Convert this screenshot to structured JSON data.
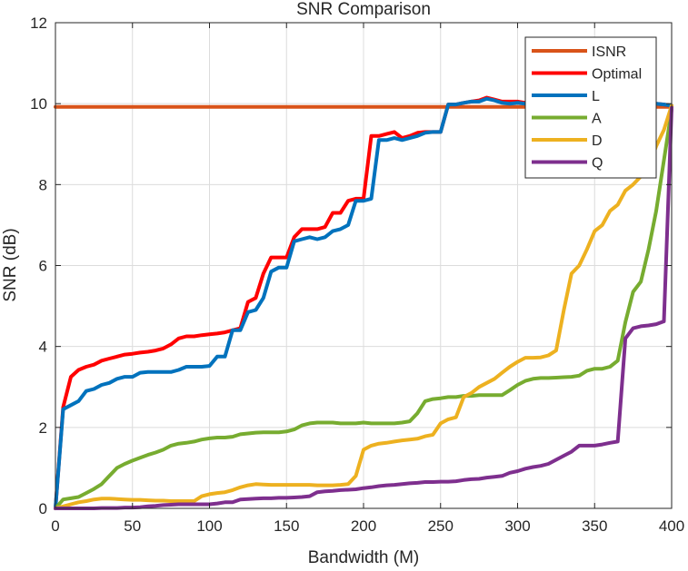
{
  "chart_data": {
    "type": "line",
    "title": "SNR Comparison",
    "xlabel": "Bandwidth (M)",
    "ylabel": "SNR (dB)",
    "xlim": [
      0,
      400
    ],
    "ylim": [
      0,
      12
    ],
    "xticks": [
      0,
      50,
      100,
      150,
      200,
      250,
      300,
      350,
      400
    ],
    "yticks": [
      0,
      2,
      4,
      6,
      8,
      10,
      12
    ],
    "grid": true,
    "legend_position": "top-right",
    "series": [
      {
        "name": "ISNR",
        "color": "#d95319",
        "x": [
          0,
          400
        ],
        "y": [
          9.92,
          9.92
        ]
      },
      {
        "name": "Optimal",
        "color": "#ff0000",
        "x": [
          0,
          5,
          10,
          15,
          20,
          25,
          30,
          35,
          40,
          45,
          50,
          55,
          60,
          65,
          70,
          75,
          80,
          85,
          90,
          95,
          100,
          105,
          110,
          115,
          120,
          125,
          130,
          135,
          140,
          145,
          150,
          155,
          160,
          165,
          170,
          175,
          180,
          185,
          190,
          195,
          200,
          205,
          210,
          215,
          220,
          225,
          230,
          235,
          240,
          245,
          250,
          255,
          260,
          265,
          270,
          275,
          280,
          285,
          290,
          295,
          300,
          305,
          310,
          315,
          320,
          325,
          330,
          335,
          340,
          345,
          350,
          355,
          360,
          365,
          370,
          375,
          380,
          385,
          390,
          395,
          400
        ],
        "y": [
          0,
          2.5,
          3.25,
          3.42,
          3.5,
          3.55,
          3.65,
          3.7,
          3.75,
          3.8,
          3.82,
          3.85,
          3.87,
          3.9,
          3.95,
          4.05,
          4.2,
          4.25,
          4.25,
          4.28,
          4.3,
          4.32,
          4.35,
          4.4,
          4.45,
          5.1,
          5.2,
          5.8,
          6.2,
          6.2,
          6.2,
          6.7,
          6.9,
          6.9,
          6.9,
          6.95,
          7.3,
          7.3,
          7.6,
          7.65,
          7.65,
          9.2,
          9.2,
          9.25,
          9.3,
          9.15,
          9.2,
          9.28,
          9.3,
          9.3,
          9.3,
          9.98,
          9.98,
          10.02,
          10.05,
          10.08,
          10.15,
          10.1,
          10.05,
          10.05,
          10.05,
          10.02,
          10.0,
          10.0,
          10.0,
          10.0,
          10.0,
          10.0,
          10.0,
          10.0,
          10.0,
          10.0,
          10.0,
          10.0,
          10.0,
          10.0,
          10.0,
          10.0,
          10.0,
          9.98,
          9.95
        ]
      },
      {
        "name": "L",
        "color": "#0072bd",
        "x": [
          0,
          5,
          10,
          15,
          20,
          25,
          30,
          35,
          40,
          45,
          50,
          55,
          60,
          65,
          70,
          75,
          80,
          85,
          90,
          95,
          100,
          105,
          110,
          115,
          120,
          125,
          130,
          135,
          140,
          145,
          150,
          155,
          160,
          165,
          170,
          175,
          180,
          185,
          190,
          195,
          200,
          205,
          210,
          215,
          220,
          225,
          230,
          235,
          240,
          245,
          250,
          255,
          260,
          265,
          270,
          275,
          280,
          285,
          290,
          295,
          300,
          305,
          310,
          315,
          320,
          325,
          330,
          335,
          340,
          345,
          350,
          355,
          360,
          365,
          370,
          375,
          380,
          385,
          390,
          395,
          400
        ],
        "y": [
          0,
          2.45,
          2.55,
          2.65,
          2.9,
          2.95,
          3.05,
          3.1,
          3.2,
          3.25,
          3.25,
          3.35,
          3.37,
          3.37,
          3.37,
          3.37,
          3.42,
          3.5,
          3.5,
          3.5,
          3.52,
          3.75,
          3.75,
          4.4,
          4.4,
          4.85,
          4.9,
          5.2,
          5.85,
          5.95,
          5.95,
          6.6,
          6.65,
          6.7,
          6.65,
          6.7,
          6.85,
          6.9,
          7.0,
          7.6,
          7.6,
          7.65,
          9.1,
          9.1,
          9.15,
          9.1,
          9.15,
          9.2,
          9.28,
          9.3,
          9.3,
          9.98,
          9.98,
          10.02,
          10.05,
          10.05,
          10.12,
          10.08,
          10.02,
          10.0,
          10.02,
          10.0,
          10.0,
          10.0,
          10.0,
          10.0,
          10.0,
          10.0,
          10.0,
          10.0,
          10.0,
          10.0,
          10.0,
          10.0,
          10.0,
          10.0,
          10.0,
          10.0,
          10.0,
          9.98,
          9.95
        ]
      },
      {
        "name": "A",
        "color": "#77ac30",
        "x": [
          0,
          5,
          10,
          15,
          20,
          25,
          30,
          35,
          40,
          45,
          50,
          55,
          60,
          65,
          70,
          75,
          80,
          85,
          90,
          95,
          100,
          105,
          110,
          115,
          120,
          125,
          130,
          135,
          140,
          145,
          150,
          155,
          160,
          165,
          170,
          175,
          180,
          185,
          190,
          195,
          200,
          205,
          210,
          215,
          220,
          225,
          230,
          235,
          240,
          245,
          250,
          255,
          260,
          265,
          270,
          275,
          280,
          285,
          290,
          295,
          300,
          305,
          310,
          315,
          320,
          325,
          330,
          335,
          340,
          345,
          350,
          355,
          360,
          365,
          370,
          375,
          380,
          385,
          390,
          395,
          400
        ],
        "y": [
          0,
          0.22,
          0.25,
          0.28,
          0.38,
          0.48,
          0.6,
          0.8,
          1.0,
          1.1,
          1.18,
          1.25,
          1.32,
          1.38,
          1.45,
          1.55,
          1.6,
          1.62,
          1.65,
          1.7,
          1.73,
          1.75,
          1.75,
          1.77,
          1.83,
          1.85,
          1.87,
          1.88,
          1.88,
          1.88,
          1.9,
          1.95,
          2.05,
          2.1,
          2.12,
          2.12,
          2.12,
          2.1,
          2.1,
          2.1,
          2.12,
          2.1,
          2.1,
          2.1,
          2.1,
          2.12,
          2.15,
          2.35,
          2.65,
          2.7,
          2.72,
          2.75,
          2.75,
          2.78,
          2.78,
          2.8,
          2.8,
          2.8,
          2.8,
          2.92,
          3.05,
          3.15,
          3.2,
          3.22,
          3.22,
          3.23,
          3.24,
          3.25,
          3.28,
          3.4,
          3.45,
          3.45,
          3.5,
          3.65,
          4.6,
          5.35,
          5.6,
          6.4,
          7.35,
          8.6,
          9.85
        ]
      },
      {
        "name": "D",
        "color": "#edb120",
        "x": [
          0,
          5,
          10,
          15,
          20,
          25,
          30,
          35,
          40,
          45,
          50,
          55,
          60,
          65,
          70,
          75,
          80,
          85,
          90,
          95,
          100,
          105,
          110,
          115,
          120,
          125,
          130,
          135,
          140,
          145,
          150,
          155,
          160,
          165,
          170,
          175,
          180,
          185,
          190,
          195,
          200,
          205,
          210,
          215,
          220,
          225,
          230,
          235,
          240,
          245,
          250,
          255,
          260,
          265,
          270,
          275,
          280,
          285,
          290,
          295,
          300,
          305,
          310,
          315,
          320,
          325,
          330,
          335,
          340,
          345,
          350,
          355,
          360,
          365,
          370,
          375,
          380,
          385,
          390,
          395,
          400
        ],
        "y": [
          0,
          0.05,
          0.1,
          0.15,
          0.18,
          0.22,
          0.24,
          0.24,
          0.23,
          0.22,
          0.21,
          0.21,
          0.2,
          0.19,
          0.19,
          0.18,
          0.18,
          0.18,
          0.18,
          0.3,
          0.35,
          0.38,
          0.4,
          0.45,
          0.52,
          0.57,
          0.6,
          0.59,
          0.58,
          0.58,
          0.58,
          0.58,
          0.58,
          0.58,
          0.57,
          0.57,
          0.57,
          0.58,
          0.6,
          0.8,
          1.45,
          1.55,
          1.6,
          1.62,
          1.65,
          1.68,
          1.7,
          1.72,
          1.78,
          1.82,
          2.1,
          2.2,
          2.25,
          2.75,
          2.85,
          3.0,
          3.1,
          3.2,
          3.35,
          3.5,
          3.62,
          3.72,
          3.72,
          3.73,
          3.78,
          3.9,
          4.9,
          5.8,
          6.0,
          6.4,
          6.85,
          7.0,
          7.35,
          7.5,
          7.85,
          8.0,
          8.2,
          8.45,
          8.95,
          9.35,
          9.95
        ]
      },
      {
        "name": "Q",
        "color": "#7e2f8e",
        "x": [
          0,
          5,
          10,
          15,
          20,
          25,
          30,
          35,
          40,
          45,
          50,
          55,
          60,
          65,
          70,
          75,
          80,
          85,
          90,
          95,
          100,
          105,
          110,
          115,
          120,
          125,
          130,
          135,
          140,
          145,
          150,
          155,
          160,
          165,
          170,
          175,
          180,
          185,
          190,
          195,
          200,
          205,
          210,
          215,
          220,
          225,
          230,
          235,
          240,
          245,
          250,
          255,
          260,
          265,
          270,
          275,
          280,
          285,
          290,
          295,
          300,
          305,
          310,
          315,
          320,
          325,
          330,
          335,
          340,
          345,
          350,
          355,
          360,
          365,
          370,
          375,
          380,
          385,
          390,
          395,
          400
        ],
        "y": [
          0,
          0,
          0,
          0,
          0,
          0,
          0.01,
          0.01,
          0.01,
          0.02,
          0.02,
          0.03,
          0.05,
          0.06,
          0.08,
          0.09,
          0.1,
          0.1,
          0.1,
          0.1,
          0.1,
          0.12,
          0.15,
          0.15,
          0.22,
          0.23,
          0.24,
          0.25,
          0.25,
          0.26,
          0.26,
          0.27,
          0.28,
          0.3,
          0.4,
          0.42,
          0.43,
          0.45,
          0.46,
          0.47,
          0.5,
          0.52,
          0.55,
          0.57,
          0.58,
          0.6,
          0.62,
          0.63,
          0.65,
          0.65,
          0.66,
          0.66,
          0.67,
          0.7,
          0.72,
          0.73,
          0.76,
          0.78,
          0.8,
          0.88,
          0.92,
          0.98,
          1.02,
          1.05,
          1.1,
          1.2,
          1.3,
          1.4,
          1.55,
          1.55,
          1.55,
          1.58,
          1.62,
          1.65,
          4.2,
          4.45,
          4.5,
          4.52,
          4.55,
          4.62,
          9.9
        ]
      }
    ]
  }
}
